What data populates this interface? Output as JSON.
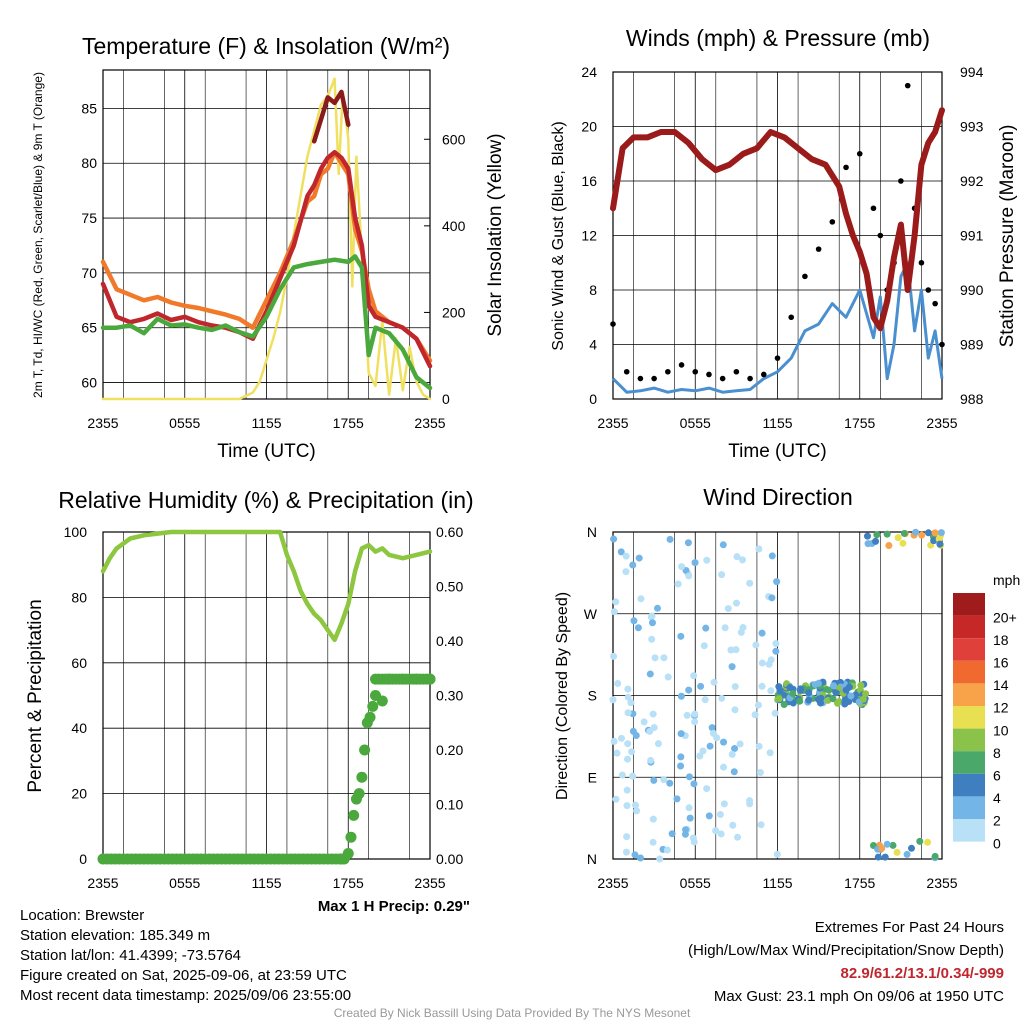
{
  "chart_data": [
    {
      "type": "line",
      "title": "Temperature (F) & Insolation (W/m²)",
      "xlabel": "Time (UTC)",
      "ylabel": "2m T, Td, HI/WC (Red, Green, Scarlet/Blue) & 9m T (Orange)",
      "ylabel2": "Solar Insolation (Yellow)",
      "x_ticks": [
        "2355",
        "0555",
        "1155",
        "1755",
        "2355"
      ],
      "y_ticks": [
        60,
        65,
        70,
        75,
        80,
        85
      ],
      "y2_ticks": [
        0,
        200,
        400,
        600
      ],
      "ylim": [
        58.5,
        88.5
      ],
      "y2lim": [
        0,
        760
      ],
      "xlim": [
        0,
        24
      ],
      "grid": true,
      "series": [
        {
          "color": "#f0e060",
          "axis": "right",
          "x": [
            0,
            6,
            10,
            11,
            11.5,
            12,
            12.5,
            13,
            13.5,
            14,
            14.5,
            15,
            15.5,
            16,
            16.5,
            17,
            17.3,
            17.6,
            18,
            18.3,
            18.6,
            19,
            19.5,
            20,
            20.5,
            21,
            21.5,
            22,
            22.5,
            23,
            23.5,
            24
          ],
          "values": [
            0,
            0,
            0,
            15,
            40,
            90,
            140,
            200,
            280,
            380,
            470,
            560,
            620,
            680,
            700,
            740,
            520,
            710,
            600,
            260,
            560,
            330,
            60,
            30,
            180,
            10,
            140,
            20,
            120,
            40,
            10,
            0
          ]
        },
        {
          "color": "#f07a2a",
          "x": [
            0,
            1,
            2,
            3,
            4,
            5,
            6,
            7,
            8,
            9,
            10,
            11,
            12,
            13,
            14,
            15,
            15.5,
            16,
            16.5,
            17,
            17.5,
            18,
            18.5,
            19,
            19.5,
            20,
            21,
            22,
            23,
            24
          ],
          "values": [
            71,
            68.5,
            68,
            67.5,
            67.8,
            67.3,
            67,
            66.8,
            66.5,
            66.2,
            65.8,
            65,
            67.5,
            70,
            73,
            76.5,
            77,
            79,
            79.5,
            81,
            80,
            79,
            74,
            72,
            68.5,
            66.5,
            65.5,
            65,
            64,
            62
          ]
        },
        {
          "color": "#c0272d",
          "x": [
            0,
            1,
            2,
            3,
            4,
            5,
            6,
            7,
            8,
            9,
            10,
            11,
            12,
            13,
            14,
            15,
            15.5,
            16,
            16.5,
            17,
            17.5,
            18,
            18.5,
            19,
            19.5,
            20,
            21,
            22,
            23,
            24
          ],
          "values": [
            69,
            66,
            65.5,
            65.8,
            66.3,
            65.7,
            66,
            65.5,
            65.2,
            65,
            64.6,
            64,
            66.5,
            69.5,
            72.5,
            77,
            78,
            79.5,
            80.5,
            81,
            80.5,
            79.5,
            75,
            72.5,
            67,
            66,
            65.5,
            65,
            64,
            61.5
          ]
        },
        {
          "color": "#8b1a1a",
          "x": [
            15.5,
            16,
            16.5,
            17,
            17.5,
            18
          ],
          "values": [
            82,
            84,
            86,
            85.5,
            86.5,
            83.5
          ]
        },
        {
          "color": "#4aa83c",
          "x": [
            0,
            1,
            2,
            3,
            4,
            5,
            6,
            7,
            8,
            9,
            10,
            11,
            12,
            13,
            14,
            15,
            16,
            17,
            18,
            18.5,
            19,
            19.5,
            20,
            21,
            22,
            23,
            24
          ],
          "values": [
            65,
            65,
            65.2,
            64.5,
            65.8,
            65.2,
            65.3,
            65,
            64.8,
            65.2,
            64.6,
            64.2,
            66,
            68.5,
            70.5,
            70.8,
            71,
            71.2,
            71,
            71.5,
            70.5,
            62.5,
            65,
            64.5,
            63,
            60.5,
            59.5
          ]
        }
      ]
    },
    {
      "type": "scatter",
      "title": "Winds (mph) & Pressure (mb)",
      "xlabel": "Time (UTC)",
      "ylabel": "Sonic Wind & Gust (Blue, Black)",
      "ylabel2": "Station Pressure (Maroon)",
      "x_ticks": [
        "2355",
        "0555",
        "1155",
        "1755",
        "2355"
      ],
      "y_ticks": [
        0,
        4,
        8,
        12,
        16,
        20,
        24
      ],
      "y2_ticks": [
        988,
        989,
        990,
        991,
        992,
        993,
        994
      ],
      "ylim": [
        0,
        24
      ],
      "y2lim": [
        988,
        994
      ],
      "xlim": [
        0,
        24
      ],
      "grid": true,
      "series": [
        {
          "color": "#4a90d0",
          "x": [
            0,
            1,
            2,
            3,
            4,
            5,
            6,
            7,
            8,
            9,
            10,
            11,
            12,
            13,
            14,
            15,
            16,
            17,
            18,
            19,
            19.5,
            20,
            20.5,
            21,
            21.5,
            22,
            22.5,
            23,
            23.5,
            24
          ],
          "values": [
            1.5,
            0.5,
            0.6,
            0.8,
            0.5,
            0.7,
            0.6,
            0.8,
            0.5,
            0.6,
            0.7,
            1.5,
            2,
            3,
            5,
            5.5,
            7,
            6,
            8,
            4.5,
            7.5,
            1.5,
            4,
            9,
            10,
            5,
            8,
            3,
            5,
            1.5
          ]
        },
        {
          "color": "#000000",
          "x": [
            0,
            1,
            2,
            3,
            4,
            5,
            6,
            7,
            8,
            9,
            10,
            11,
            12,
            13,
            14,
            15,
            16,
            17,
            18,
            19,
            19.5,
            20,
            20.5,
            21,
            21.5,
            22,
            22.5,
            23,
            23.5,
            24
          ],
          "values": [
            5.5,
            2,
            1.5,
            1.5,
            2,
            2.5,
            2,
            1.8,
            1.5,
            2,
            1.5,
            1.8,
            3,
            6,
            9,
            11,
            13,
            17,
            18,
            14,
            12,
            8,
            10,
            16,
            23,
            14,
            10,
            8,
            7,
            4
          ]
        },
        {
          "color": "#9b1b1b",
          "x": [
            0,
            0.7,
            1.5,
            2.5,
            3.5,
            4.5,
            5.5,
            6.5,
            7.5,
            8.5,
            9.5,
            10.5,
            11.5,
            12.5,
            13.5,
            14.5,
            15.5,
            16.5,
            17,
            17.5,
            18,
            18.5,
            19,
            19.5,
            20,
            20.5,
            21,
            21.5,
            22,
            22.5,
            23,
            23.5,
            24
          ],
          "values": [
            991.5,
            992.6,
            992.8,
            992.8,
            992.9,
            992.9,
            992.7,
            992.4,
            992.2,
            992.3,
            992.5,
            992.6,
            992.9,
            992.8,
            992.6,
            992.4,
            992.3,
            991.9,
            991.4,
            991,
            990.7,
            990.3,
            989.5,
            989.3,
            989.8,
            990.6,
            991.2,
            990,
            991,
            992.3,
            992.7,
            992.9,
            993.3
          ]
        }
      ]
    },
    {
      "type": "line",
      "title": "Relative Humidity (%) & Precipitation (in)",
      "xlabel": "",
      "ylabel": "Percent & Precipitation",
      "x_ticks": [
        "2355",
        "0555",
        "1155",
        "1755",
        "2355"
      ],
      "y_ticks": [
        0,
        20,
        40,
        60,
        80,
        100
      ],
      "y2_ticks": [
        "0.00",
        "0.10",
        "0.20",
        "0.30",
        "0.40",
        "0.50",
        "0.60"
      ],
      "ylim": [
        0,
        100
      ],
      "y2lim": [
        0,
        0.6
      ],
      "xlim": [
        0,
        24
      ],
      "grid": true,
      "annotation": "Max 1 H Precip: 0.29\"",
      "series": [
        {
          "color": "#8dc63f",
          "x": [
            0,
            0.5,
            1,
            2,
            3,
            4,
            5,
            6,
            7,
            8,
            9,
            10,
            11,
            12,
            13,
            13.5,
            14,
            14.5,
            15,
            15.5,
            16,
            16.5,
            17,
            17.5,
            18,
            18.5,
            19,
            19.5,
            20,
            20.5,
            21,
            22,
            23,
            24
          ],
          "values": [
            88,
            92,
            95,
            98,
            99,
            99.5,
            100,
            100,
            100,
            100,
            100,
            100,
            100,
            100,
            100,
            93,
            88,
            82,
            78,
            75,
            73,
            70,
            67,
            72,
            78,
            88,
            95,
            96,
            94,
            95,
            93,
            92,
            93,
            94
          ]
        },
        {
          "color": "#4aa83c",
          "markers": true,
          "x": [
            0,
            2,
            4,
            6,
            8,
            10,
            12,
            14,
            16,
            17.5,
            18,
            18.2,
            18.4,
            18.6,
            18.8,
            19,
            19.2,
            19.4,
            19.6,
            19.8,
            20,
            20.5,
            21,
            22,
            23,
            24
          ],
          "values": [
            0,
            0,
            0,
            0,
            0,
            0,
            0,
            0,
            0,
            0,
            0.01,
            0.04,
            0.08,
            0.11,
            0.12,
            0.15,
            0.2,
            0.25,
            0.26,
            0.28,
            0.3,
            0.29,
            0.33,
            0.33,
            0.33,
            0.33
          ]
        }
      ]
    },
    {
      "type": "scatter",
      "title": "Wind Direction",
      "ylabel": "Direction (Colored By Speed)",
      "x_ticks": [
        "2355",
        "0555",
        "1155",
        "1755",
        "2355"
      ],
      "y_ticks": [
        "N",
        "E",
        "S",
        "W",
        "N"
      ],
      "xlim": [
        0,
        24
      ],
      "grid": true,
      "colorbar": {
        "unit": "mph",
        "labels": [
          "20+",
          "18",
          "16",
          "14",
          "12",
          "10",
          "8",
          "6",
          "4",
          "2",
          "0"
        ],
        "colors": [
          "#a01b1b",
          "#c62828",
          "#e0403a",
          "#f06a30",
          "#f8a24a",
          "#e8e050",
          "#8bc34a",
          "#4aa86a",
          "#3f7fbf",
          "#72b5e6",
          "#b8e0f6"
        ]
      }
    }
  ],
  "footer": {
    "location": "Location: Brewster",
    "elevation": "Station elevation: 185.349 m",
    "latlon": "Station lat/lon: 41.4399; -73.5764",
    "created": "Figure created on Sat, 2025-09-06, at 23:59 UTC",
    "timestamp": "Most recent data timestamp: 2025/09/06 23:55:00",
    "extremes_title": "Extremes For Past 24 Hours",
    "extremes_subtitle": "(High/Low/Max Wind/Precipitation/Snow Depth)",
    "extremes_values": "82.9/61.2/13.1/0.34/-999",
    "max_gust": "Max Gust: 23.1 mph On 09/06 at 1950 UTC",
    "credit": "Created By Nick Bassill Using Data Provided By The NYS Mesonet"
  },
  "colors": {
    "maroon": "#9b1b1b",
    "gust": "#000000",
    "wind": "#4a90d0",
    "rh": "#8dc63f",
    "precip": "#4aa83c",
    "extremes": "#c0272d"
  }
}
